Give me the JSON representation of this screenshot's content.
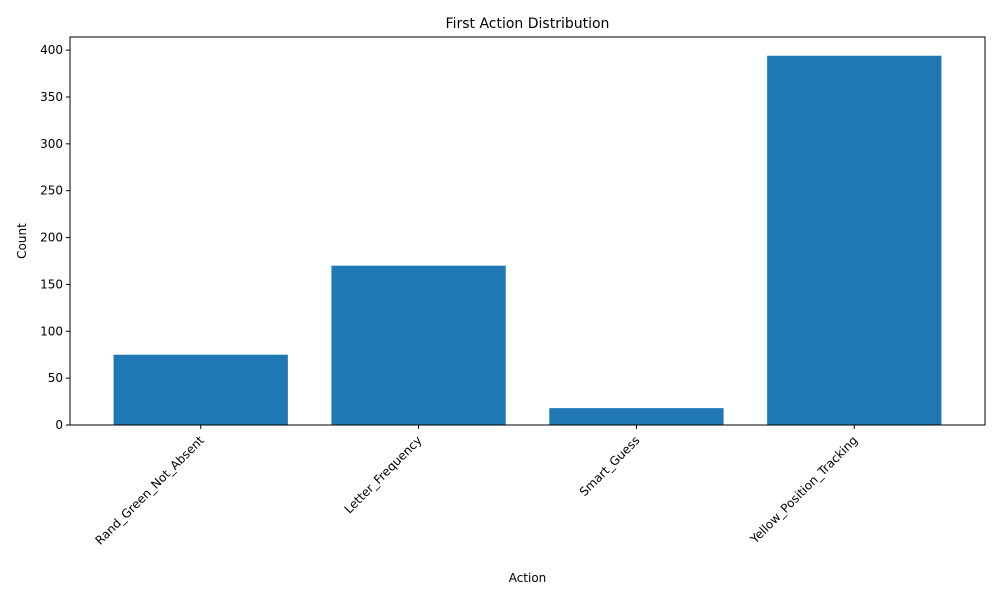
{
  "chart_data": {
    "type": "bar",
    "title": "First Action Distribution",
    "xlabel": "Action",
    "ylabel": "Count",
    "categories": [
      "Rand_Green_Not_Absent",
      "Letter_Frequency",
      "Smart_Guess",
      "Yellow_Position_Tracking"
    ],
    "values": [
      75,
      170,
      18,
      394
    ],
    "ylim": [
      0,
      414
    ],
    "yticks": [
      0,
      50,
      100,
      150,
      200,
      250,
      300,
      350,
      400
    ],
    "bar_color": "#1f77b4",
    "grid": false,
    "legend": "none"
  }
}
